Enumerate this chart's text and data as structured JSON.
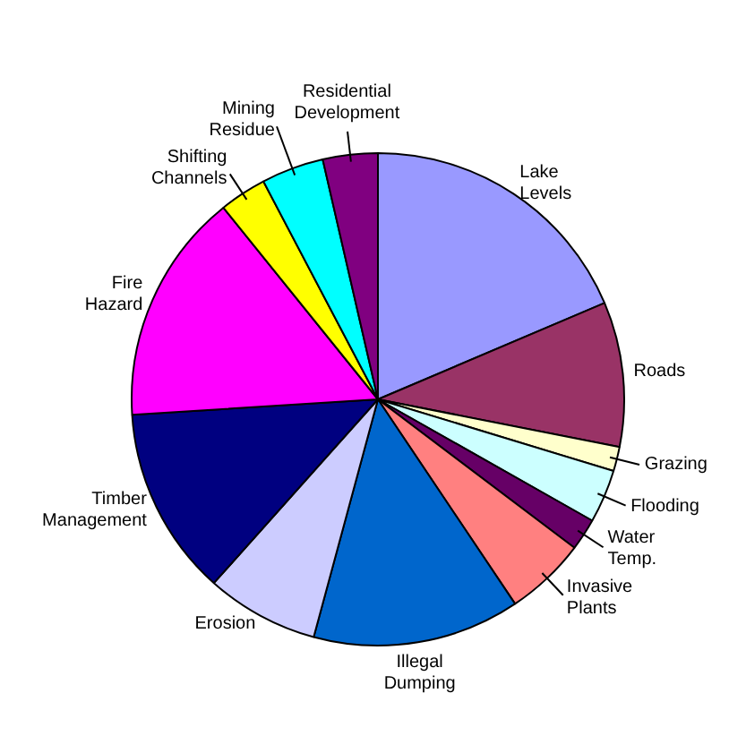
{
  "chart_data": {
    "type": "pie",
    "categories": [
      "Lake Levels",
      "Roads",
      "Grazing",
      "Flooding",
      "Water Temp.",
      "Invasive Plants",
      "Illegal Dumping",
      "Erosion",
      "Timber Management",
      "Fire Hazard",
      "Shifting Channels",
      "Mining Residue",
      "Residential Development"
    ],
    "values": [
      18.6,
      9.5,
      1.6,
      3.5,
      2.1,
      5.3,
      13.6,
      7.4,
      12.4,
      15.2,
      3.1,
      4.1,
      3.6
    ],
    "colors": [
      "#9999ff",
      "#993366",
      "#ffffcc",
      "#ccffff",
      "#660066",
      "#ff8080",
      "#0066cc",
      "#ccccff",
      "#000080",
      "#ff00ff",
      "#ffff00",
      "#00ffff",
      "#800080"
    ]
  }
}
